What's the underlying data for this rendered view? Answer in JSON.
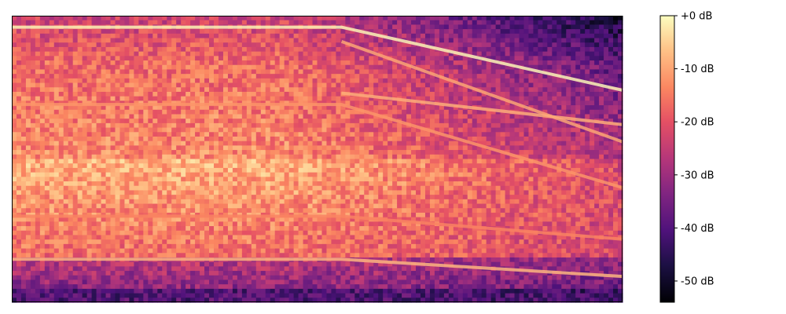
{
  "chart_data": {
    "type": "heatmap",
    "title": "",
    "xlabel": "",
    "ylabel": "",
    "colormap": "magma",
    "colorbar": {
      "unit": "dB",
      "range": [
        -54,
        0
      ],
      "ticks": [
        {
          "value": 0,
          "label": "+0 dB"
        },
        {
          "value": -10,
          "label": "-10 dB"
        },
        {
          "value": -20,
          "label": "-20 dB"
        },
        {
          "value": -30,
          "label": "-30 dB"
        },
        {
          "value": -40,
          "label": "-40 dB"
        },
        {
          "value": -50,
          "label": "-50 dB"
        }
      ]
    },
    "axes_ticks_visible": false,
    "grid": false,
    "description_of_content": "spectrogram",
    "grid_cells": {
      "time_bins": 130,
      "freq_bins": 64
    },
    "tone_lines": [
      {
        "level_db": -1,
        "start_time_fraction": 0.0,
        "turn_time_fraction": 0.54,
        "start_height_fraction": 0.96,
        "end_height_fraction": 0.74
      },
      {
        "level_db": -10,
        "start_time_fraction": 0.54,
        "turn_time_fraction": 0.54,
        "start_height_fraction": 0.91,
        "end_height_fraction": 0.56
      },
      {
        "level_db": -9,
        "start_time_fraction": 0.54,
        "turn_time_fraction": 0.54,
        "start_height_fraction": 0.73,
        "end_height_fraction": 0.62
      },
      {
        "level_db": -8,
        "start_time_fraction": 0.0,
        "turn_time_fraction": 0.54,
        "start_height_fraction": 0.15,
        "end_height_fraction": 0.09
      },
      {
        "level_db": -12,
        "start_time_fraction": 0.0,
        "turn_time_fraction": 0.54,
        "start_height_fraction": 0.69,
        "end_height_fraction": 0.4
      },
      {
        "level_db": -14,
        "start_time_fraction": 0.0,
        "turn_time_fraction": 0.54,
        "start_height_fraction": 0.3,
        "end_height_fraction": 0.22
      }
    ]
  }
}
